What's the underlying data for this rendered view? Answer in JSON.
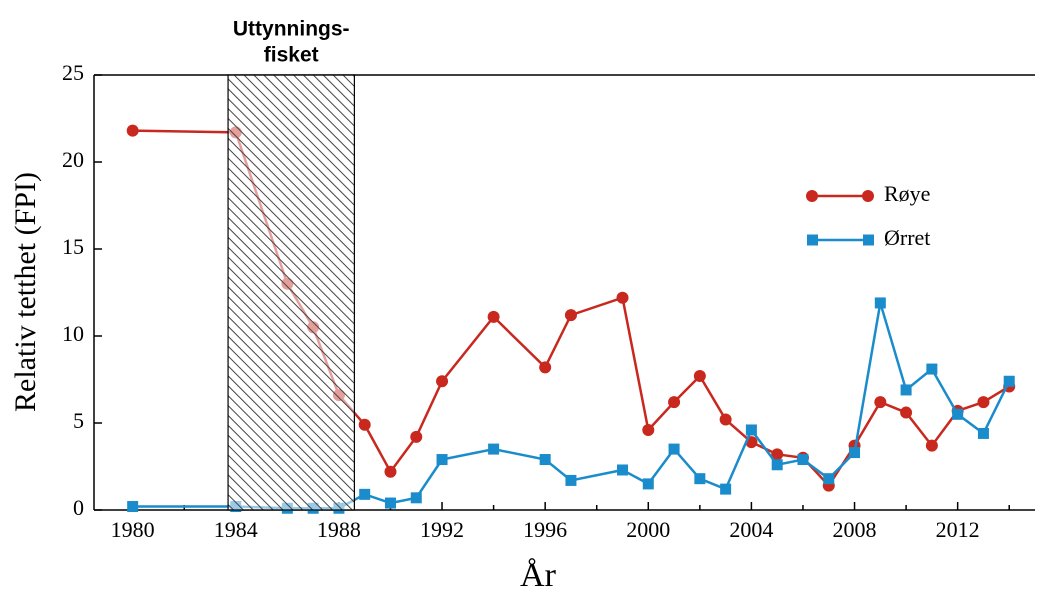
{
  "chart_data": {
    "type": "line",
    "x_label": "År",
    "y_label": "Relativ tetthet (FPI)",
    "x": [
      1980,
      1984,
      1986,
      1987,
      1988,
      1989,
      1990,
      1991,
      1992,
      1994,
      1996,
      1997,
      1999,
      2000,
      2001,
      2002,
      2003,
      2004,
      2005,
      2006,
      2007,
      2008,
      2009,
      2010,
      2011,
      2012,
      2013,
      2014
    ],
    "series": [
      {
        "name": "Røye",
        "color": "#c8281e",
        "marker": "circle",
        "values": [
          21.8,
          21.7,
          13.0,
          10.5,
          6.6,
          4.9,
          2.2,
          4.2,
          7.4,
          11.1,
          8.2,
          11.2,
          12.2,
          4.6,
          6.2,
          7.7,
          5.2,
          3.9,
          3.2,
          3.0,
          1.4,
          3.7,
          6.2,
          5.6,
          3.7,
          5.7,
          6.2,
          7.1
        ]
      },
      {
        "name": "Ørret",
        "color": "#1a8ccc",
        "marker": "square",
        "values": [
          0.2,
          0.2,
          0.1,
          0.1,
          0.1,
          0.9,
          0.4,
          0.7,
          2.9,
          3.5,
          2.9,
          1.7,
          2.3,
          1.5,
          3.5,
          1.8,
          1.2,
          4.6,
          2.6,
          2.9,
          1.8,
          3.3,
          11.9,
          6.9,
          8.1,
          5.5,
          4.4,
          7.4
        ]
      }
    ],
    "xlim": [
      1978.5,
      2015
    ],
    "ylim": [
      0,
      25
    ],
    "xticks": [
      1980,
      1984,
      1988,
      1992,
      1996,
      2000,
      2004,
      2008,
      2012
    ],
    "xticks_minor": [
      1982,
      1986,
      1990,
      1994,
      1998,
      2002,
      2006,
      2010,
      2014
    ],
    "yticks": [
      0,
      5,
      10,
      15,
      20,
      25
    ],
    "shaded_region": {
      "range": [
        1983.7,
        1988.6
      ],
      "label": [
        "Uttynnings-",
        "fisket"
      ]
    },
    "legend": "right"
  }
}
